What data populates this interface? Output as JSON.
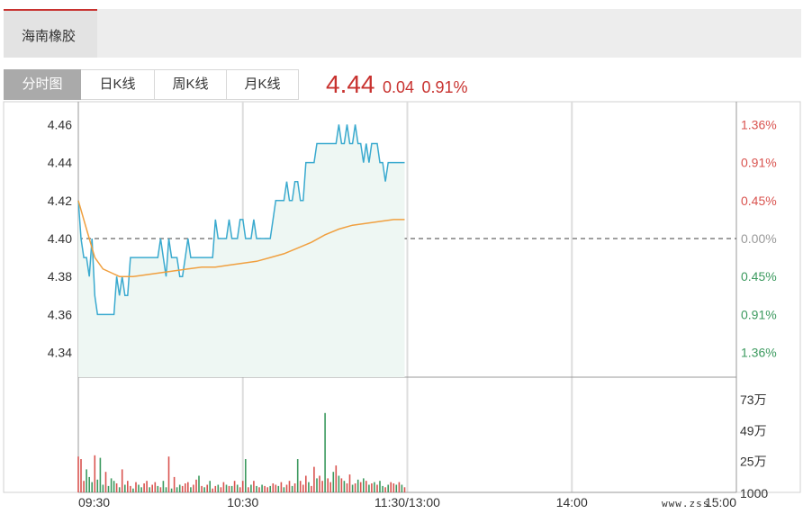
{
  "header": {
    "stock_name": "海南橡胶"
  },
  "tabs": [
    {
      "label": "分时图",
      "active": true
    },
    {
      "label": "日K线",
      "active": false
    },
    {
      "label": "周K线",
      "active": false
    },
    {
      "label": "月K线",
      "active": false
    }
  ],
  "quote": {
    "price": "4.44",
    "change": "0.04",
    "change_pct": "0.91%"
  },
  "watermark": "www.zss",
  "colors": {
    "up": "#d9534f",
    "down": "#3c9a5f",
    "price_line": "#3aaacf",
    "avg_line": "#f0a040",
    "fill": "#eef7f3"
  },
  "chart_data": {
    "type": "line",
    "prev_close": 4.4,
    "price_axis": {
      "ticks": [
        4.46,
        4.44,
        4.42,
        4.4,
        4.38,
        4.36,
        4.34
      ],
      "labels": [
        "4.46",
        "4.44",
        "4.42",
        "4.40",
        "4.38",
        "4.36",
        "4.34"
      ]
    },
    "pct_axis": {
      "labels": [
        "1.36%",
        "0.91%",
        "0.45%",
        "0.00%",
        "0.45%",
        "0.91%",
        "1.36%"
      ],
      "colors": [
        "up",
        "up",
        "up",
        "neutral",
        "down",
        "down",
        "down"
      ]
    },
    "time_labels": [
      "09:30",
      "10:30",
      "11:30/13:00",
      "14:00",
      "15:00"
    ],
    "volume_axis": {
      "labels": [
        "73万",
        "49万",
        "25万",
        "1000"
      ],
      "values": [
        730000,
        490000,
        250000,
        1000
      ],
      "max": 900000
    },
    "session_minutes": 240,
    "series": [
      {
        "name": "price",
        "x": [
          0,
          1,
          2,
          3,
          4,
          5,
          6,
          7,
          8,
          9,
          10,
          11,
          12,
          13,
          14,
          15,
          16,
          17,
          18,
          19,
          20,
          21,
          22,
          23,
          24,
          25,
          26,
          27,
          28,
          29,
          30,
          31,
          32,
          33,
          34,
          35,
          36,
          37,
          38,
          39,
          40,
          41,
          42,
          43,
          44,
          45,
          46,
          47,
          48,
          49,
          50,
          51,
          52,
          53,
          54,
          55,
          56,
          57,
          58,
          59,
          60,
          61,
          62,
          63,
          64,
          65,
          66,
          67,
          68,
          69,
          70,
          71,
          72,
          73,
          74,
          75,
          76,
          77,
          78,
          79,
          80,
          81,
          82,
          83,
          84,
          85,
          86,
          87,
          88,
          89,
          90,
          91,
          92,
          93,
          94,
          95,
          96,
          97,
          98,
          99,
          100,
          101,
          102,
          103,
          104,
          105,
          106,
          107,
          108,
          109,
          110,
          111,
          112,
          113,
          114,
          115,
          116,
          117,
          118,
          119
        ],
        "values": [
          4.42,
          4.4,
          4.39,
          4.39,
          4.38,
          4.4,
          4.37,
          4.36,
          4.36,
          4.36,
          4.36,
          4.36,
          4.36,
          4.36,
          4.38,
          4.37,
          4.38,
          4.37,
          4.37,
          4.39,
          4.39,
          4.39,
          4.39,
          4.39,
          4.39,
          4.39,
          4.39,
          4.39,
          4.39,
          4.39,
          4.4,
          4.39,
          4.38,
          4.4,
          4.39,
          4.39,
          4.39,
          4.38,
          4.38,
          4.39,
          4.4,
          4.39,
          4.39,
          4.39,
          4.39,
          4.39,
          4.39,
          4.39,
          4.39,
          4.39,
          4.41,
          4.4,
          4.4,
          4.4,
          4.4,
          4.41,
          4.4,
          4.4,
          4.4,
          4.41,
          4.41,
          4.4,
          4.4,
          4.4,
          4.41,
          4.4,
          4.4,
          4.4,
          4.4,
          4.4,
          4.4,
          4.41,
          4.42,
          4.42,
          4.42,
          4.42,
          4.43,
          4.42,
          4.42,
          4.43,
          4.43,
          4.42,
          4.42,
          4.44,
          4.44,
          4.44,
          4.44,
          4.45,
          4.45,
          4.45,
          4.45,
          4.45,
          4.45,
          4.45,
          4.45,
          4.46,
          4.45,
          4.45,
          4.46,
          4.45,
          4.45,
          4.46,
          4.45,
          4.45,
          4.44,
          4.45,
          4.44,
          4.45,
          4.45,
          4.45,
          4.44,
          4.44,
          4.43,
          4.44,
          4.44,
          4.44,
          4.44,
          4.44,
          4.44,
          4.44
        ]
      },
      {
        "name": "average",
        "x": [
          0,
          3,
          6,
          9,
          12,
          15,
          20,
          25,
          30,
          35,
          40,
          45,
          50,
          55,
          60,
          65,
          70,
          75,
          80,
          85,
          90,
          95,
          100,
          105,
          110,
          115,
          119
        ],
        "values": [
          4.42,
          4.405,
          4.39,
          4.384,
          4.382,
          4.38,
          4.38,
          4.381,
          4.382,
          4.383,
          4.384,
          4.385,
          4.385,
          4.386,
          4.387,
          4.388,
          4.39,
          4.392,
          4.395,
          4.398,
          4.402,
          4.405,
          4.407,
          4.408,
          4.409,
          4.41,
          4.41
        ]
      }
    ],
    "volume": {
      "x": [
        0,
        1,
        2,
        3,
        4,
        5,
        6,
        7,
        8,
        9,
        10,
        11,
        12,
        13,
        14,
        15,
        16,
        17,
        18,
        19,
        20,
        21,
        22,
        23,
        24,
        25,
        26,
        27,
        28,
        29,
        30,
        31,
        32,
        33,
        34,
        35,
        36,
        37,
        38,
        39,
        40,
        41,
        42,
        43,
        44,
        45,
        46,
        47,
        48,
        49,
        50,
        51,
        52,
        53,
        54,
        55,
        56,
        57,
        58,
        59,
        60,
        61,
        62,
        63,
        64,
        65,
        66,
        67,
        68,
        69,
        70,
        71,
        72,
        73,
        74,
        75,
        76,
        77,
        78,
        79,
        80,
        81,
        82,
        83,
        84,
        85,
        86,
        87,
        88,
        89,
        90,
        91,
        92,
        93,
        94,
        95,
        96,
        97,
        98,
        99,
        100,
        101,
        102,
        103,
        104,
        105,
        106,
        107,
        108,
        109,
        110,
        111,
        112,
        113,
        114,
        115,
        116,
        117,
        118,
        119
      ],
      "values": [
        280000,
        260000,
        90000,
        180000,
        120000,
        80000,
        290000,
        100000,
        270000,
        60000,
        160000,
        50000,
        110000,
        90000,
        70000,
        40000,
        180000,
        60000,
        90000,
        50000,
        30000,
        80000,
        60000,
        40000,
        70000,
        90000,
        40000,
        60000,
        80000,
        50000,
        40000,
        90000,
        40000,
        280000,
        30000,
        120000,
        40000,
        60000,
        50000,
        70000,
        80000,
        40000,
        60000,
        100000,
        130000,
        50000,
        40000,
        60000,
        90000,
        30000,
        50000,
        60000,
        40000,
        80000,
        60000,
        50000,
        50000,
        90000,
        60000,
        40000,
        90000,
        260000,
        40000,
        60000,
        90000,
        50000,
        40000,
        60000,
        50000,
        40000,
        50000,
        70000,
        60000,
        50000,
        80000,
        40000,
        60000,
        90000,
        50000,
        70000,
        260000,
        90000,
        60000,
        130000,
        80000,
        50000,
        200000,
        110000,
        130000,
        90000,
        620000,
        110000,
        80000,
        160000,
        210000,
        130000,
        110000,
        90000,
        70000,
        140000,
        60000,
        70000,
        100000,
        80000,
        110000,
        90000,
        60000,
        70000,
        80000,
        60000,
        90000,
        50000,
        40000,
        60000,
        80000,
        70000,
        60000,
        80000,
        60000,
        40000
      ],
      "direction": [
        "up",
        "up",
        "up",
        "down",
        "down",
        "down",
        "up",
        "down",
        "down",
        "down",
        "up",
        "down",
        "down",
        "down",
        "up",
        "down",
        "up",
        "down",
        "up",
        "up",
        "down",
        "up",
        "down",
        "down",
        "up",
        "up",
        "down",
        "up",
        "up",
        "down",
        "up",
        "down",
        "down",
        "up",
        "down",
        "up",
        "down",
        "down",
        "up",
        "up",
        "up",
        "down",
        "up",
        "up",
        "down",
        "up",
        "down",
        "up",
        "down",
        "up",
        "up",
        "down",
        "up",
        "up",
        "down",
        "up",
        "down",
        "up",
        "down",
        "up",
        "up",
        "down",
        "up",
        "down",
        "up",
        "down",
        "up",
        "down",
        "up",
        "up",
        "down",
        "up",
        "up",
        "down",
        "up",
        "down",
        "up",
        "up",
        "down",
        "up",
        "down",
        "up",
        "up",
        "up",
        "down",
        "up",
        "up",
        "down",
        "up",
        "up",
        "down",
        "up",
        "up",
        "down",
        "up",
        "down",
        "up",
        "down",
        "up",
        "up",
        "down",
        "up",
        "down",
        "up",
        "down",
        "up",
        "down",
        "up",
        "down",
        "up",
        "down",
        "down",
        "up",
        "down",
        "up",
        "up",
        "down",
        "up",
        "down",
        "up"
      ]
    }
  }
}
